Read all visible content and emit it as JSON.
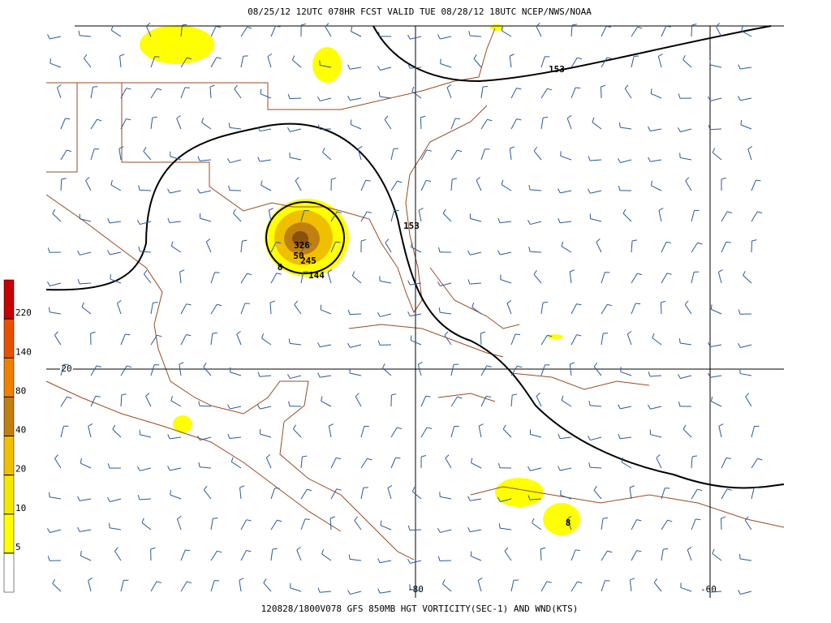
{
  "header": {
    "title": "08/25/12 12UTC  078HR  FCST VALID TUE 08/28/12 18UTC  NCEP/NWS/NOAA"
  },
  "footer": {
    "caption": "120828/1800V078 GFS 850MB HGT VORTICITY(SEC-1) AND WND(KTS)"
  },
  "legend": {
    "levels": [
      5,
      10,
      20,
      40,
      80,
      140,
      220
    ],
    "colors": [
      "#ffffff",
      "#ffff00",
      "#f5e800",
      "#f0c000",
      "#c08010",
      "#f08000",
      "#e85000",
      "#c80000"
    ]
  },
  "grid": {
    "lat_label": "20",
    "lon_labels": [
      "-80",
      "-60"
    ]
  },
  "contour_labels": [
    "153",
    "153",
    "144",
    "245",
    "326",
    "50",
    "8",
    "8"
  ]
}
